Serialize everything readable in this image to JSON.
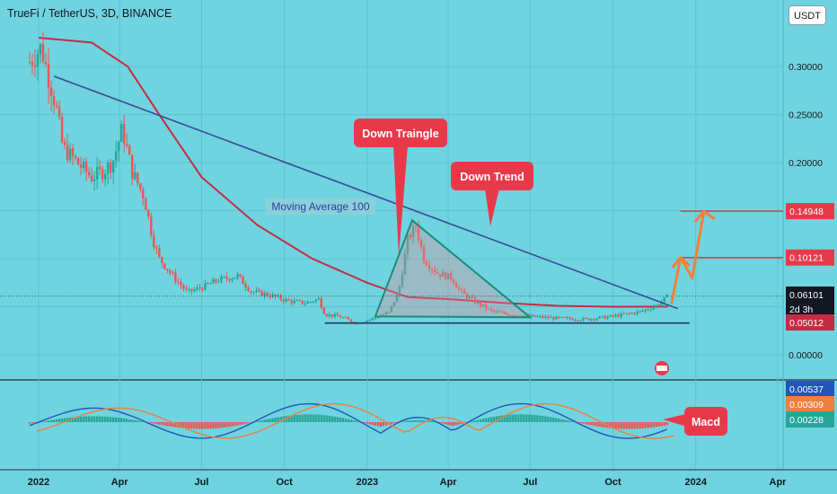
{
  "header": {
    "title": "TrueFi / TetherUS, 3D, BINANCE",
    "currency": "USDT"
  },
  "chart_data": {
    "type": "candlestick",
    "symbol": "TrueFi / TetherUS",
    "interval": "3D",
    "exchange": "BINANCE",
    "y_axis": {
      "ticks": [
        0.0,
        0.05,
        0.1,
        0.15,
        0.2,
        0.25,
        0.3
      ],
      "tick_labels": [
        "0.00000",
        "0.05000",
        "0.10000",
        "0.15000",
        "0.20000",
        "0.25000",
        "0.30000"
      ],
      "ylim": [
        -0.003,
        0.35
      ]
    },
    "x_axis": {
      "ticks": [
        "2022-01-01",
        "2022-04-01",
        "2022-07-01",
        "2022-10-01",
        "2023-01-01",
        "2023-04-01",
        "2023-07-01",
        "2023-10-01",
        "2024-01-01",
        "2024-04-01"
      ],
      "tick_labels": [
        "2022",
        "Apr",
        "Jul",
        "Oct",
        "2023",
        "Apr",
        "Jul",
        "Oct",
        "2024",
        "Apr"
      ]
    },
    "price_tags": [
      {
        "label": "0.14948",
        "value": 0.14948,
        "kind": "target"
      },
      {
        "label": "0.10121",
        "value": 0.10121,
        "kind": "target"
      },
      {
        "label": "0.06101",
        "value": 0.06101,
        "kind": "last"
      },
      {
        "label": "2d 3h",
        "value": 0.0515,
        "kind": "countdown"
      },
      {
        "label": "0.05012",
        "value": 0.05012,
        "kind": "ma"
      }
    ],
    "price_points": [
      [
        "2021-12-22",
        0.305
      ],
      [
        "2022-01-04",
        0.32
      ],
      [
        "2022-01-12",
        0.29
      ],
      [
        "2022-01-20",
        0.26
      ],
      [
        "2022-01-28",
        0.215
      ],
      [
        "2022-02-08",
        0.205
      ],
      [
        "2022-02-18",
        0.195
      ],
      [
        "2022-03-01",
        0.185
      ],
      [
        "2022-03-12",
        0.19
      ],
      [
        "2022-03-24",
        0.2
      ],
      [
        "2022-04-04",
        0.235
      ],
      [
        "2022-04-15",
        0.19
      ],
      [
        "2022-04-28",
        0.165
      ],
      [
        "2022-05-08",
        0.12
      ],
      [
        "2022-05-15",
        0.1
      ],
      [
        "2022-06-01",
        0.08
      ],
      [
        "2022-06-15",
        0.065
      ],
      [
        "2022-07-01",
        0.07
      ],
      [
        "2022-07-20",
        0.078
      ],
      [
        "2022-08-10",
        0.082
      ],
      [
        "2022-08-25",
        0.066
      ],
      [
        "2022-09-15",
        0.062
      ],
      [
        "2022-10-05",
        0.056
      ],
      [
        "2022-10-25",
        0.054
      ],
      [
        "2022-11-08",
        0.058
      ],
      [
        "2022-11-15",
        0.042
      ],
      [
        "2022-12-01",
        0.04
      ],
      [
        "2022-12-20",
        0.033
      ],
      [
        "2023-01-05",
        0.037
      ],
      [
        "2023-01-25",
        0.044
      ],
      [
        "2023-02-05",
        0.066
      ],
      [
        "2023-02-15",
        0.12
      ],
      [
        "2023-02-24",
        0.135
      ],
      [
        "2023-03-05",
        0.1
      ],
      [
        "2023-03-20",
        0.085
      ],
      [
        "2023-04-05",
        0.08
      ],
      [
        "2023-04-15",
        0.065
      ],
      [
        "2023-05-01",
        0.055
      ],
      [
        "2023-05-20",
        0.045
      ],
      [
        "2023-06-10",
        0.042
      ],
      [
        "2023-07-01",
        0.04
      ],
      [
        "2023-08-01",
        0.038
      ],
      [
        "2023-09-01",
        0.037
      ],
      [
        "2023-10-01",
        0.04
      ],
      [
        "2023-11-01",
        0.045
      ],
      [
        "2023-11-20",
        0.052
      ],
      [
        "2023-12-01",
        0.061
      ]
    ],
    "series": [
      {
        "name": "Moving Average 100",
        "color": "#c62c46",
        "points": [
          [
            "2022-01-01",
            0.33
          ],
          [
            "2022-03-01",
            0.325
          ],
          [
            "2022-04-10",
            0.3
          ],
          [
            "2022-05-15",
            0.25
          ],
          [
            "2022-07-01",
            0.185
          ],
          [
            "2022-09-01",
            0.135
          ],
          [
            "2022-11-01",
            0.1
          ],
          [
            "2023-01-01",
            0.075
          ],
          [
            "2023-02-15",
            0.06
          ],
          [
            "2023-04-01",
            0.058
          ],
          [
            "2023-06-01",
            0.054
          ],
          [
            "2023-08-01",
            0.051
          ],
          [
            "2023-10-01",
            0.05
          ],
          [
            "2023-12-01",
            0.05012
          ]
        ]
      }
    ],
    "trendlines": [
      {
        "name": "Down Trend",
        "color": "#3a4a9a",
        "points": [
          [
            "2022-01-18",
            0.29
          ],
          [
            "2023-12-12",
            0.048
          ]
        ]
      },
      {
        "name": "Down Traingle",
        "color": "#1e8b7a",
        "points": [
          [
            "2023-01-10",
            0.04
          ],
          [
            "2023-02-20",
            0.14
          ],
          [
            "2023-07-01",
            0.039
          ]
        ]
      }
    ],
    "support_line": {
      "value": 0.033,
      "from": "2022-11-15",
      "to": "2023-12-25"
    },
    "projection_path": [
      [
        "2023-12-05",
        0.053
      ],
      [
        "2023-12-15",
        0.1012
      ],
      [
        "2023-12-28",
        0.08
      ],
      [
        "2024-01-10",
        0.1495
      ]
    ],
    "annotations": [
      {
        "text": "Down Traingle",
        "color": "#e8394a"
      },
      {
        "text": "Down Trend",
        "color": "#e8394a"
      },
      {
        "text": "Moving Average 100",
        "color": "#2b3f9e"
      },
      {
        "text": "Macd",
        "color": "#e8394a"
      }
    ],
    "macd_panel": {
      "value_labels": [
        {
          "label": "0.00537",
          "color": "#2156b8"
        },
        {
          "label": "0.00309",
          "color": "#f07f3c"
        },
        {
          "label": "0.00228",
          "color": "#26a69a"
        }
      ],
      "macd_line_color": "#2156b8",
      "signal_line_color": "#f07f3c",
      "histogram_colors": [
        "#26a69a",
        "#ef5350"
      ]
    },
    "grid": true,
    "candle_colors": {
      "up": "#26a69a",
      "down": "#ef5350"
    }
  }
}
